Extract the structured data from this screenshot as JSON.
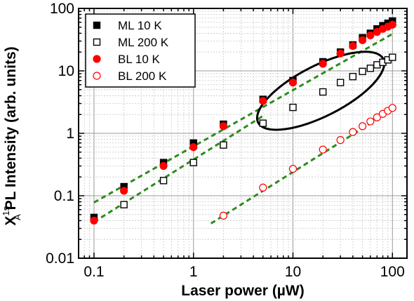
{
  "chart_data": {
    "type": "scatter",
    "xscale": "log",
    "yscale": "log",
    "xlim": [
      0.07,
      140
    ],
    "ylim": [
      0.01,
      100
    ],
    "grid": true,
    "legend_position": "top-left",
    "xlabel": "Laser power (µW)",
    "ylabel_main": "X",
    "ylabel_sup": "1s",
    "ylabel_sub": "A",
    "ylabel_rest": " PL Intensity (arb. units)",
    "x_ticks": [
      {
        "value": 0.1,
        "label": "0.1"
      },
      {
        "value": 1,
        "label": "1"
      },
      {
        "value": 10,
        "label": "10"
      },
      {
        "value": 100,
        "label": "100"
      }
    ],
    "y_ticks": [
      {
        "value": 0.01,
        "label": "0.01"
      },
      {
        "value": 0.1,
        "label": "0.1"
      },
      {
        "value": 1,
        "label": "1"
      },
      {
        "value": 10,
        "label": "10"
      },
      {
        "value": 100,
        "label": "100"
      }
    ],
    "series": [
      {
        "name": "ML 10 K",
        "marker": "square",
        "filled": true,
        "color": "#000000",
        "points": [
          [
            0.1,
            0.045
          ],
          [
            0.2,
            0.14
          ],
          [
            0.5,
            0.34
          ],
          [
            1,
            0.7
          ],
          [
            2,
            1.4
          ],
          [
            5,
            3.5
          ],
          [
            10,
            7.0
          ],
          [
            20,
            14
          ],
          [
            30,
            20
          ],
          [
            40,
            26
          ],
          [
            50,
            34
          ],
          [
            60,
            40
          ],
          [
            70,
            47
          ],
          [
            80,
            53
          ],
          [
            90,
            58
          ],
          [
            100,
            63
          ]
        ]
      },
      {
        "name": "ML 200 K",
        "marker": "square",
        "filled": false,
        "color": "#000000",
        "points": [
          [
            0.2,
            0.072
          ],
          [
            0.5,
            0.175
          ],
          [
            1,
            0.34
          ],
          [
            2,
            0.65
          ],
          [
            5,
            1.45
          ],
          [
            10,
            2.6
          ],
          [
            20,
            4.6
          ],
          [
            30,
            6.5
          ],
          [
            40,
            8.1
          ],
          [
            50,
            9.8
          ],
          [
            60,
            11
          ],
          [
            70,
            12.5
          ],
          [
            80,
            13.7
          ],
          [
            90,
            15
          ],
          [
            100,
            16.5
          ]
        ]
      },
      {
        "name": "BL 10 K",
        "marker": "circle",
        "filled": true,
        "color": "#ff0000",
        "points": [
          [
            0.1,
            0.04
          ],
          [
            0.2,
            0.12
          ],
          [
            0.5,
            0.3
          ],
          [
            1,
            0.6
          ],
          [
            2,
            1.3
          ],
          [
            5,
            3.3
          ],
          [
            10,
            6.5
          ],
          [
            20,
            13
          ],
          [
            30,
            19
          ],
          [
            40,
            25
          ],
          [
            50,
            31
          ],
          [
            60,
            37
          ],
          [
            70,
            42
          ],
          [
            80,
            47
          ],
          [
            90,
            51
          ],
          [
            100,
            55
          ]
        ]
      },
      {
        "name": "BL 200 K",
        "marker": "circle",
        "filled": false,
        "color": "#ff0000",
        "points": [
          [
            2,
            0.048
          ],
          [
            5,
            0.135
          ],
          [
            10,
            0.27
          ],
          [
            20,
            0.55
          ],
          [
            30,
            0.78
          ],
          [
            40,
            1.05
          ],
          [
            50,
            1.3
          ],
          [
            60,
            1.55
          ],
          [
            70,
            1.8
          ],
          [
            80,
            2.05
          ],
          [
            90,
            2.3
          ],
          [
            100,
            2.55
          ]
        ]
      }
    ],
    "fit_lines": [
      {
        "color": "#2e8b1e",
        "from": [
          0.1,
          0.078
        ],
        "to": [
          100,
          39
        ]
      },
      {
        "color": "#2e8b1e",
        "from": [
          0.1,
          0.038
        ],
        "to": [
          5,
          1.9
        ]
      },
      {
        "color": "#2e8b1e",
        "from": [
          1.5,
          0.036
        ],
        "to": [
          100,
          2.4
        ]
      }
    ],
    "annotation_ellipse": {
      "color": "#000000",
      "center": [
        19,
        4.8
      ],
      "note": "tilted ellipse around ML 200 K points from 10 to 100"
    }
  }
}
